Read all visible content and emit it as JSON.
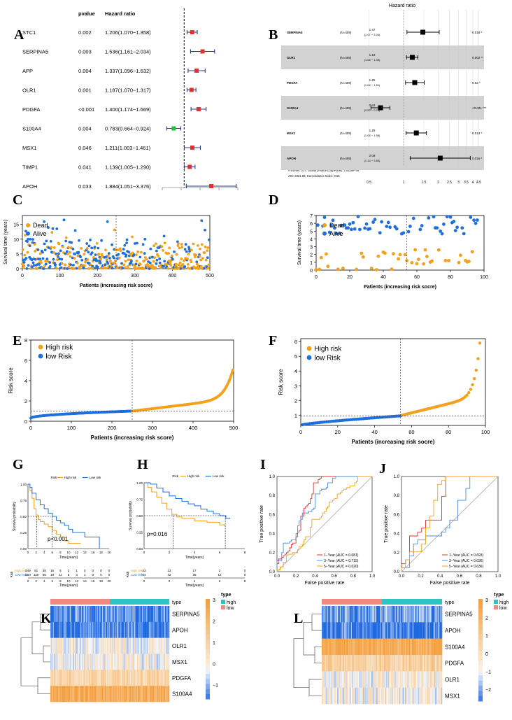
{
  "colors": {
    "orange": "#f5a01a",
    "blue": "#1f6fe0",
    "red": "#e0312f",
    "green": "#2db84a",
    "navy": "#2a3a8a",
    "teal": "#2ec4c4",
    "salmon": "#f08a80",
    "heat_orange": "#f5a040",
    "heat_blue": "#1e68e0",
    "heat_cream": "#f3eed8"
  },
  "panel_letters": {
    "A": "A",
    "B": "B",
    "C": "C",
    "D": "D",
    "E": "E",
    "F": "F",
    "G": "G",
    "H": "H",
    "I": "I",
    "J": "J",
    "K": "K",
    "L": "L"
  },
  "panel_a": {
    "col_pvalue": "pvalue",
    "col_hr": "Hazard ratio",
    "rows": [
      {
        "gene": "STC1",
        "p": "0.002",
        "hr": "1.206(1.070−1.358)",
        "est": 1.206,
        "lo": 1.07,
        "hi": 1.358
      },
      {
        "gene": "SERPINA5",
        "p": "0.003",
        "hr": "1.536(1.161−2.034)",
        "est": 1.536,
        "lo": 1.161,
        "hi": 2.034
      },
      {
        "gene": "APP",
        "p": "0.004",
        "hr": "1.337(1.096−1.632)",
        "est": 1.337,
        "lo": 1.096,
        "hi": 1.632
      },
      {
        "gene": "OLR1",
        "p": "0.001",
        "hr": "1.187(1.070−1.317)",
        "est": 1.187,
        "lo": 1.07,
        "hi": 1.317
      },
      {
        "gene": "PDGFA",
        "p": "<0.001",
        "hr": "1.400(1.174−1.669)",
        "est": 1.4,
        "lo": 1.174,
        "hi": 1.669
      },
      {
        "gene": "S100A4",
        "p": "0.004",
        "hr": "0.783(0.664−0.924)",
        "est": 0.783,
        "lo": 0.664,
        "hi": 0.924
      },
      {
        "gene": "MSX1",
        "p": "0.046",
        "hr": "1.211(1.003−1.461)",
        "est": 1.211,
        "lo": 1.003,
        "hi": 1.461
      },
      {
        "gene": "TIMP1",
        "p": "0.041",
        "hr": "1.139(1.005−1.290)",
        "est": 1.139,
        "lo": 1.005,
        "hi": 1.29
      },
      {
        "gene": "APOH",
        "p": "0.033",
        "hr": "1.884(1.051−3.376)",
        "est": 1.884,
        "lo": 1.051,
        "hi": 3.376
      }
    ]
  },
  "panel_b": {
    "title": "Hazard ratio",
    "rows": [
      {
        "gene": "SERPINA5",
        "n": "(N=499)",
        "hr": "1.47",
        "ci": "(1.07 − 2.04)",
        "p": "0.018 *",
        "est": 1.47,
        "lo": 1.07,
        "hi": 2.04
      },
      {
        "gene": "OLR1",
        "n": "(N=499)",
        "hr": "1.19",
        "ci": "(1.06 − 1.33)",
        "p": "0.002 **",
        "est": 1.19,
        "lo": 1.06,
        "hi": 1.33
      },
      {
        "gene": "PDGFA",
        "n": "(N=499)",
        "hr": "1.25",
        "ci": "(1.04 − 1.51)",
        "p": "0.02 *",
        "est": 1.25,
        "lo": 1.04,
        "hi": 1.51
      },
      {
        "gene": "S100A4",
        "n": "(N=499)",
        "hr": "0.63",
        "ci": "(0.52 − 0.76)",
        "p": "<0.001 ***",
        "est": 0.63,
        "lo": 0.52,
        "hi": 0.76
      },
      {
        "gene": "MSX1",
        "n": "(N=499)",
        "hr": "1.29",
        "ci": "(1.05 − 1.58)",
        "p": "0.013 *",
        "est": 1.29,
        "lo": 1.05,
        "hi": 1.58
      },
      {
        "gene": "APOH",
        "n": "(N=499)",
        "hr": "2.08",
        "ci": "(1.14 − 3.80)",
        "p": "0.016 *",
        "est": 2.08,
        "lo": 1.14,
        "hi": 3.8
      }
    ],
    "footer1": "# Events: 217; Global p-value (Log-Rank): 2.0119e−09",
    "footer2": "AIC: 2321.93; Concordance Index: 0.65",
    "ticks": [
      "0.5",
      "1",
      "1.5",
      "2",
      "2.5",
      "3",
      "3.5",
      "4",
      "4.5"
    ]
  },
  "chart_data": [
    {
      "panel": "C",
      "type": "scatter",
      "xlabel": "Patients (increasing risk socre)",
      "ylabel": "Survival time (years)",
      "xlim": [
        0,
        500
      ],
      "ylim": [
        0,
        18
      ],
      "xticks": [
        "0",
        "100",
        "200",
        "300",
        "400",
        "500"
      ],
      "yticks": [
        "0",
        "5",
        "10",
        "15"
      ],
      "legend": [
        "Dead",
        "Alive"
      ],
      "cutoff_x": 250
    },
    {
      "panel": "D",
      "type": "scatter",
      "xlabel": "Patients (increasing risk socre)",
      "ylabel": "Survival time (years)",
      "xlim": [
        0,
        100
      ],
      "ylim": [
        0,
        7
      ],
      "xticks": [
        "0",
        "20",
        "40",
        "60",
        "80",
        "100"
      ],
      "yticks": [
        "0",
        "1",
        "2",
        "3",
        "4",
        "5",
        "6",
        "7"
      ],
      "legend": [
        "Dead",
        "Alive"
      ],
      "cutoff_x": 54
    },
    {
      "panel": "E",
      "type": "scatter",
      "xlabel": "Patients (increasing risk score)",
      "ylabel": "Risk score",
      "xlim": [
        0,
        500
      ],
      "ylim": [
        0,
        8
      ],
      "xticks": [
        "0",
        "100",
        "200",
        "300",
        "400",
        "500"
      ],
      "yticks": [
        "0",
        "2",
        "4",
        "6",
        "8"
      ],
      "legend": [
        "High risk",
        "low Risk"
      ],
      "cutoff_x": 250,
      "cutoff_y": 1
    },
    {
      "panel": "F",
      "type": "scatter",
      "xlabel": "Patients (increasing risk socre)",
      "ylabel": "Risk score",
      "xlim": [
        0,
        100
      ],
      "ylim": [
        0.3,
        6.2
      ],
      "xticks": [
        "0",
        "20",
        "40",
        "60",
        "80",
        "100"
      ],
      "yticks": [
        "1",
        "2",
        "3",
        "4",
        "5",
        "6"
      ],
      "legend": [
        "High risk",
        "low Risk"
      ],
      "cutoff_x": 54,
      "cutoff_y": 0.95
    },
    {
      "panel": "G",
      "type": "line",
      "ylabel": "Survival probability",
      "xlabel": "Time(years)",
      "legend_title": "Risk",
      "legend": [
        "High risk",
        "Low risk"
      ],
      "pvalue": "p<0.001",
      "xticks": [
        "0",
        "2",
        "4",
        "6",
        "8",
        "10",
        "12",
        "14",
        "16",
        "18",
        "20"
      ],
      "yticks": [
        "0.00",
        "0.25",
        "0.50",
        "0.75",
        "1.00"
      ],
      "risk_table": {
        "label": "Risk",
        "rows": [
          {
            "name": "High risk",
            "values": [
              "249",
              "91",
              "38",
              "15",
              "5",
              "2",
              "1",
              "0",
              "0",
              "0",
              "0"
            ]
          },
          {
            "name": "Low risk",
            "values": [
              "250",
              "125",
              "55",
              "19",
              "11",
              "6",
              "4",
              "1",
              "0",
              "0",
              "0"
            ]
          }
        ],
        "xlabel": "Time(years)"
      }
    },
    {
      "panel": "H",
      "type": "line",
      "ylabel": "Survival probability",
      "xlabel": "Time(years)",
      "legend_title": "Risk",
      "legend": [
        "High risk",
        "Low risk"
      ],
      "pvalue": "p=0.016",
      "xticks": [
        "0",
        "2",
        "4",
        "6",
        "8"
      ],
      "yticks": [
        "0.00",
        "0.25",
        "0.50",
        "0.75",
        "1.00"
      ],
      "risk_table": {
        "label": "Risk",
        "rows": [
          {
            "name": "High risk",
            "values": [
              "43",
              "23",
              "17",
              "2",
              "0"
            ]
          },
          {
            "name": "Low risk",
            "values": [
              "54",
              "42",
              "35",
              "12",
              "0"
            ]
          }
        ],
        "xlabel": "Time(years)"
      }
    },
    {
      "panel": "I",
      "type": "line",
      "xlabel": "False positive rate",
      "ylabel": "True positive rate",
      "ticks": [
        "0.0",
        "0.2",
        "0.4",
        "0.6",
        "0.8",
        "1.0"
      ],
      "legend": [
        "1−Year (AUC = 0.681)",
        "3−Year (AUC = 0.715)",
        "5−Year (AUC = 0.620)"
      ]
    },
    {
      "panel": "J",
      "type": "line",
      "xlabel": "False positive rate",
      "ylabel": "True positive rate",
      "ticks": [
        "0.0",
        "0.2",
        "0.4",
        "0.6",
        "0.8",
        "1.0"
      ],
      "legend": [
        "1−Year (AUC = 0.693)",
        "3−Year (AUC = 0.636)",
        "5−Year (AUC = 0.636)"
      ]
    },
    {
      "panel": "K",
      "type": "heatmap",
      "genes": [
        "SERPINA5",
        "APOH",
        "OLR1",
        "MSX1",
        "PDGFA",
        "S100A4"
      ],
      "annotation": "type",
      "legend_title": "type",
      "groups": [
        "high",
        "low"
      ],
      "scale": [
        "3",
        "2",
        "1",
        "0",
        "−1"
      ]
    },
    {
      "panel": "L",
      "type": "heatmap",
      "genes": [
        "SERPINA5",
        "APOH",
        "S100A4",
        "PDGFA",
        "OLR1",
        "MSX1"
      ],
      "annotation": "type",
      "legend_title": "type",
      "groups": [
        "high",
        "low"
      ],
      "scale": [
        "3",
        "2",
        "1",
        "0",
        "−1",
        "−2"
      ]
    }
  ]
}
